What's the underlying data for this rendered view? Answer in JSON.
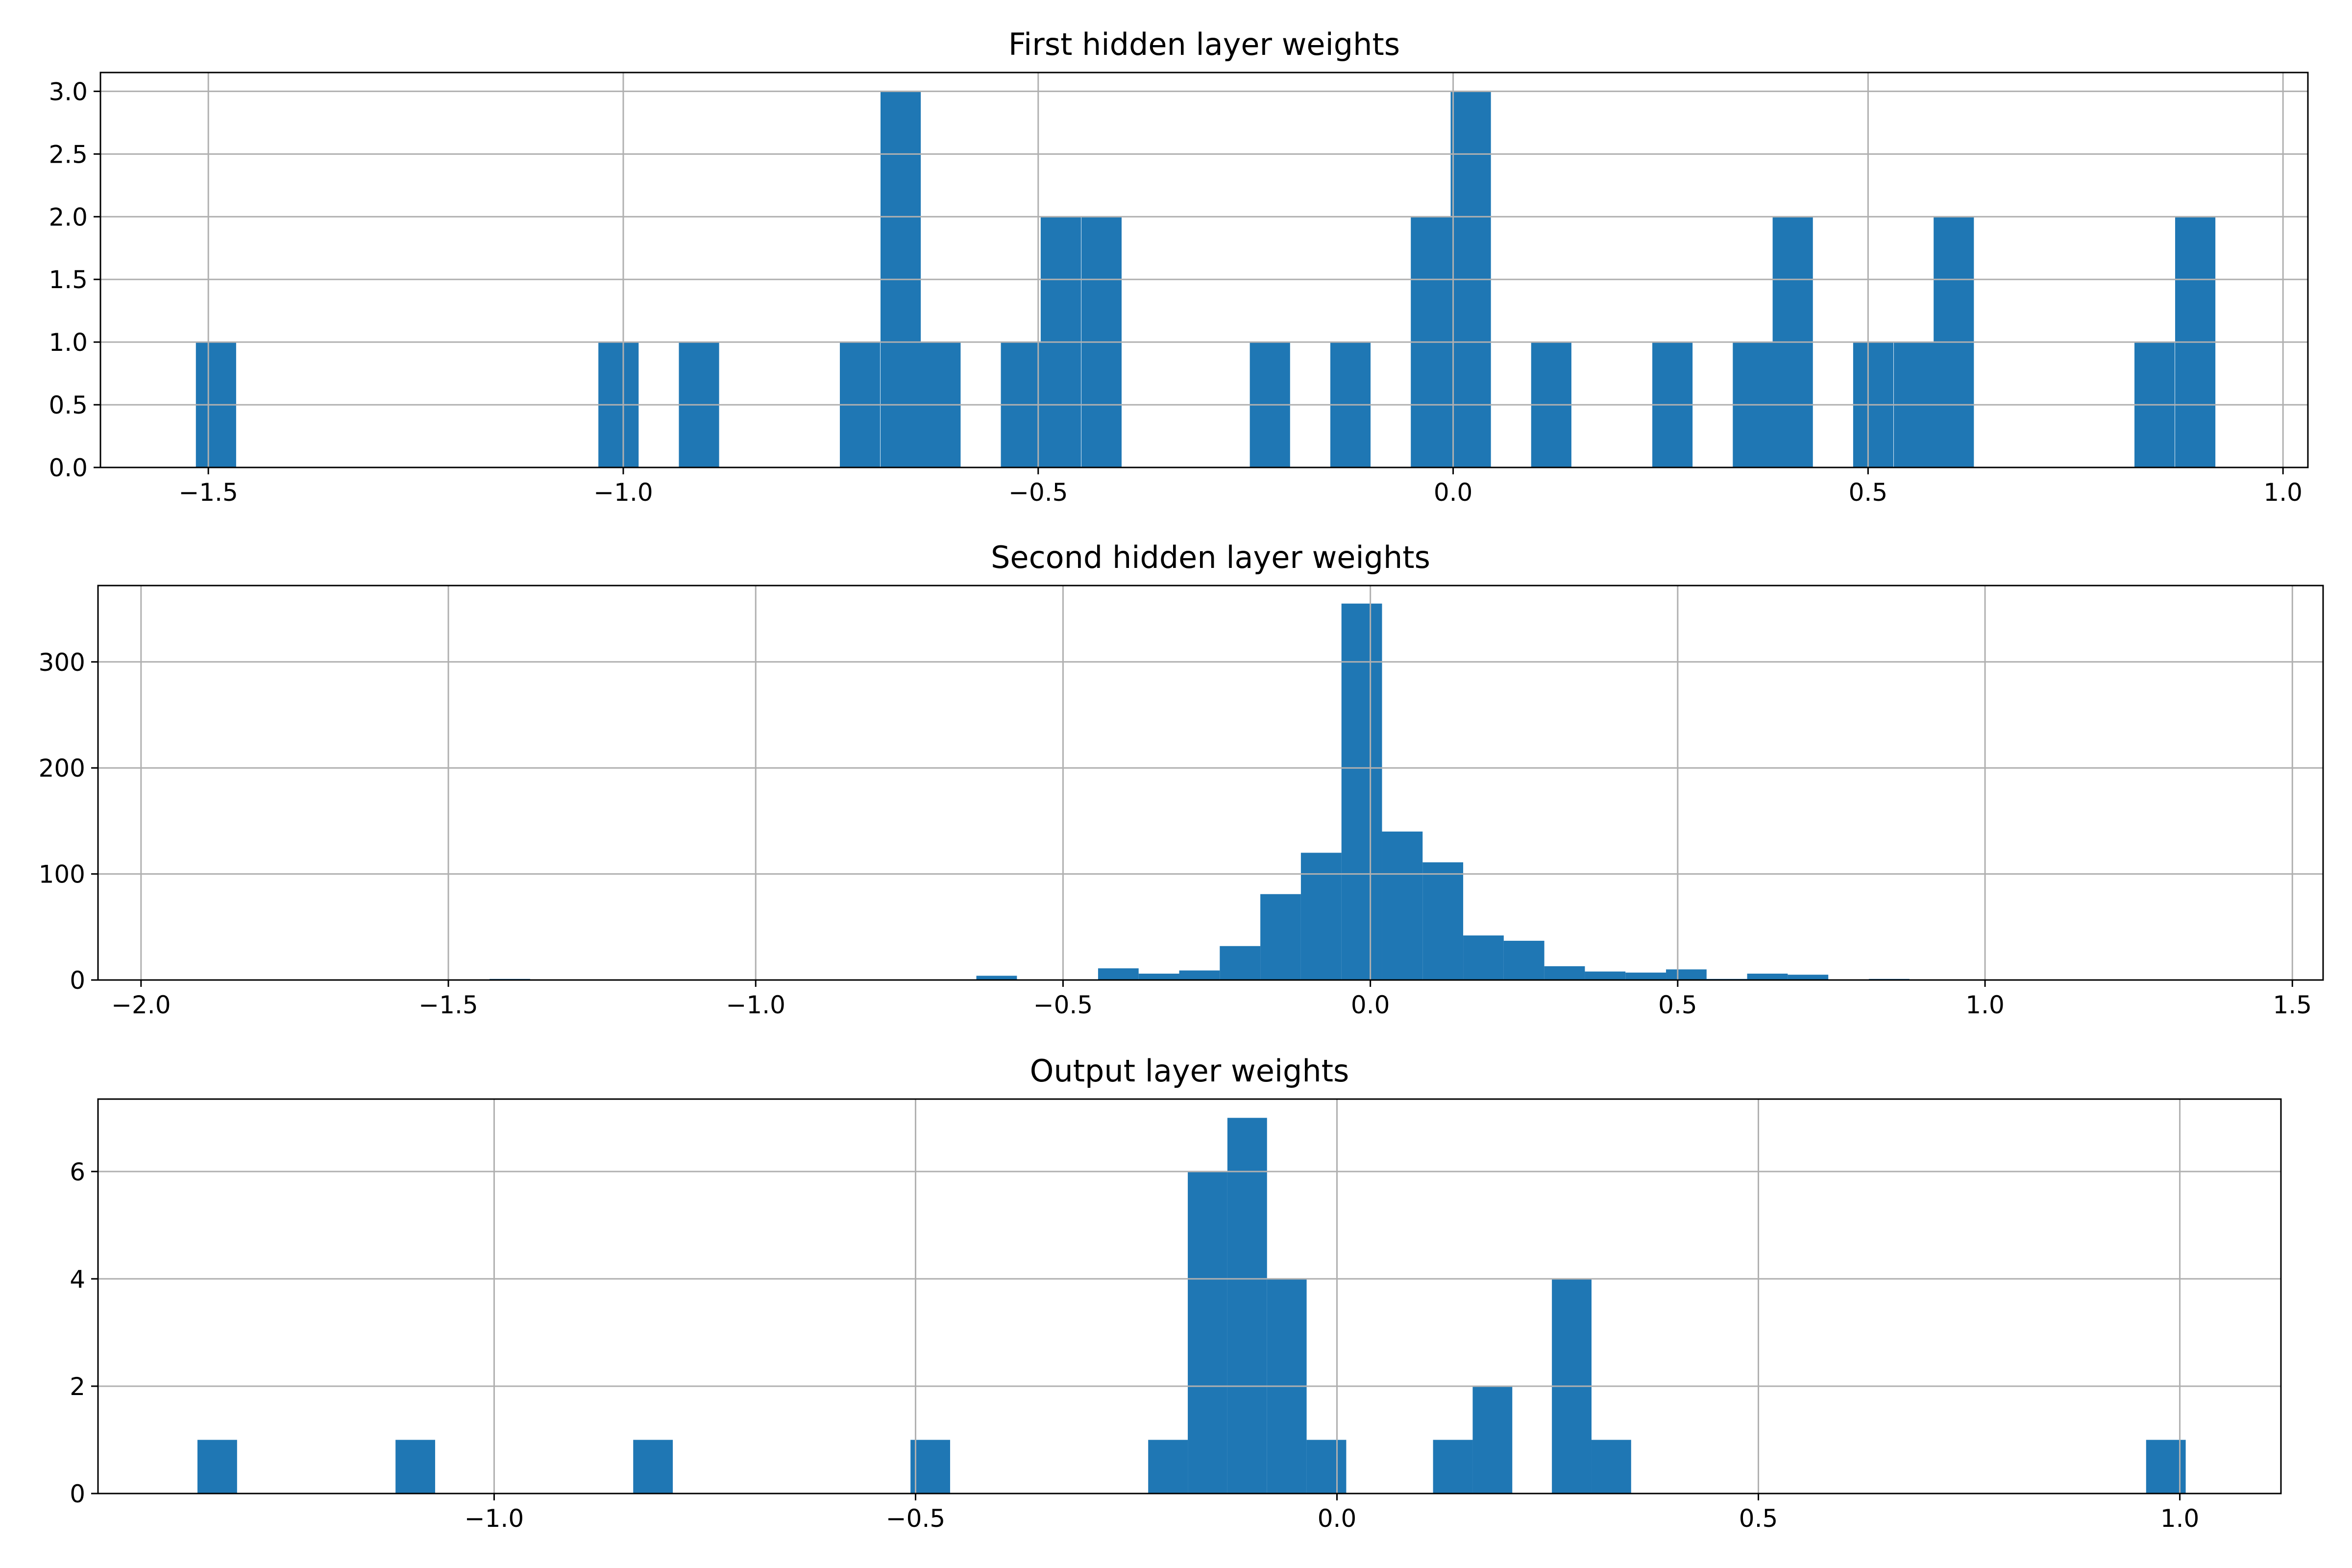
{
  "chart_data": [
    {
      "type": "bar",
      "title": "First hidden layer weights",
      "xlabel": "",
      "ylabel": "",
      "grid": true,
      "color": "#1f77b4",
      "xlim": [
        -1.63,
        1.03
      ],
      "ylim": [
        0,
        3.15
      ],
      "xticks": [
        -1.5,
        -1.0,
        -0.5,
        0.0,
        0.5,
        1.0
      ],
      "xtick_labels": [
        "−1.5",
        "−1.0",
        "−0.5",
        "0.0",
        "0.5",
        "1.0"
      ],
      "yticks": [
        0,
        0.5,
        1.0,
        1.5,
        2.0,
        2.5,
        3.0
      ],
      "ytick_labels": [
        "0.0",
        "0.5",
        "1.0",
        "1.5",
        "2.0",
        "2.5",
        "3.0"
      ],
      "bin_width": 0.0485,
      "bins": [
        {
          "x0": -1.515,
          "count": 1
        },
        {
          "x0": -1.03,
          "count": 1
        },
        {
          "x0": -0.933,
          "count": 1
        },
        {
          "x0": -0.739,
          "count": 1
        },
        {
          "x0": -0.69,
          "count": 3
        },
        {
          "x0": -0.642,
          "count": 1
        },
        {
          "x0": -0.545,
          "count": 1
        },
        {
          "x0": -0.497,
          "count": 2
        },
        {
          "x0": -0.448,
          "count": 2
        },
        {
          "x0": -0.245,
          "count": 1
        },
        {
          "x0": -0.148,
          "count": 1
        },
        {
          "x0": -0.051,
          "count": 2
        },
        {
          "x0": -0.003,
          "count": 3
        },
        {
          "x0": 0.094,
          "count": 1
        },
        {
          "x0": 0.24,
          "count": 1
        },
        {
          "x0": 0.337,
          "count": 1
        },
        {
          "x0": 0.385,
          "count": 2
        },
        {
          "x0": 0.482,
          "count": 1
        },
        {
          "x0": 0.531,
          "count": 1
        },
        {
          "x0": 0.579,
          "count": 2
        },
        {
          "x0": 0.821,
          "count": 1
        },
        {
          "x0": 0.87,
          "count": 2
        }
      ]
    },
    {
      "type": "bar",
      "title": "Second hidden layer weights",
      "xlabel": "",
      "ylabel": "",
      "grid": true,
      "color": "#1f77b4",
      "xlim": [
        -2.07,
        1.55
      ],
      "ylim": [
        0,
        372
      ],
      "xticks": [
        -2.0,
        -1.5,
        -1.0,
        -0.5,
        0.0,
        0.5,
        1.0,
        1.5
      ],
      "xtick_labels": [
        "−2.0",
        "−1.5",
        "−1.0",
        "−0.5",
        "0.0",
        "0.5",
        "1.0",
        "1.5"
      ],
      "yticks": [
        0,
        100,
        200,
        300
      ],
      "ytick_labels": [
        "0",
        "100",
        "200",
        "300"
      ],
      "bin_width": 0.066,
      "bins": [
        {
          "x0": -1.433,
          "count": 1
        },
        {
          "x0": -0.641,
          "count": 4
        },
        {
          "x0": -0.443,
          "count": 11
        },
        {
          "x0": -0.377,
          "count": 6
        },
        {
          "x0": -0.311,
          "count": 9
        },
        {
          "x0": -0.245,
          "count": 32
        },
        {
          "x0": -0.179,
          "count": 81
        },
        {
          "x0": -0.113,
          "count": 120
        },
        {
          "x0": -0.047,
          "count": 355
        },
        {
          "x0": 0.019,
          "count": 140
        },
        {
          "x0": 0.085,
          "count": 111
        },
        {
          "x0": 0.151,
          "count": 42
        },
        {
          "x0": 0.217,
          "count": 37
        },
        {
          "x0": 0.283,
          "count": 13
        },
        {
          "x0": 0.349,
          "count": 8
        },
        {
          "x0": 0.415,
          "count": 7
        },
        {
          "x0": 0.481,
          "count": 10
        },
        {
          "x0": 0.547,
          "count": 1
        },
        {
          "x0": 0.613,
          "count": 6
        },
        {
          "x0": 0.679,
          "count": 5
        },
        {
          "x0": 0.811,
          "count": 1
        }
      ]
    },
    {
      "type": "bar",
      "title": "Output layer weights",
      "xlabel": "",
      "ylabel": "",
      "grid": true,
      "color": "#1f77b4",
      "xlim": [
        -1.47,
        1.12
      ],
      "ylim": [
        0,
        7.35
      ],
      "xticks": [
        -1.0,
        -0.5,
        0.0,
        0.5,
        1.0
      ],
      "xtick_labels": [
        "−1.0",
        "−0.5",
        "0.0",
        "0.5",
        "1.0"
      ],
      "yticks": [
        0,
        2,
        4,
        6
      ],
      "ytick_labels": [
        "0",
        "2",
        "4",
        "6"
      ],
      "bin_width": 0.047,
      "bins": [
        {
          "x0": -1.352,
          "count": 1
        },
        {
          "x0": -1.117,
          "count": 1
        },
        {
          "x0": -0.835,
          "count": 1
        },
        {
          "x0": -0.506,
          "count": 1
        },
        {
          "x0": -0.224,
          "count": 1
        },
        {
          "x0": -0.177,
          "count": 6
        },
        {
          "x0": -0.13,
          "count": 7
        },
        {
          "x0": -0.083,
          "count": 4
        },
        {
          "x0": -0.036,
          "count": 1
        },
        {
          "x0": 0.114,
          "count": 1
        },
        {
          "x0": 0.161,
          "count": 2
        },
        {
          "x0": 0.255,
          "count": 4
        },
        {
          "x0": 0.302,
          "count": 1
        },
        {
          "x0": 0.96,
          "count": 1
        }
      ]
    }
  ]
}
